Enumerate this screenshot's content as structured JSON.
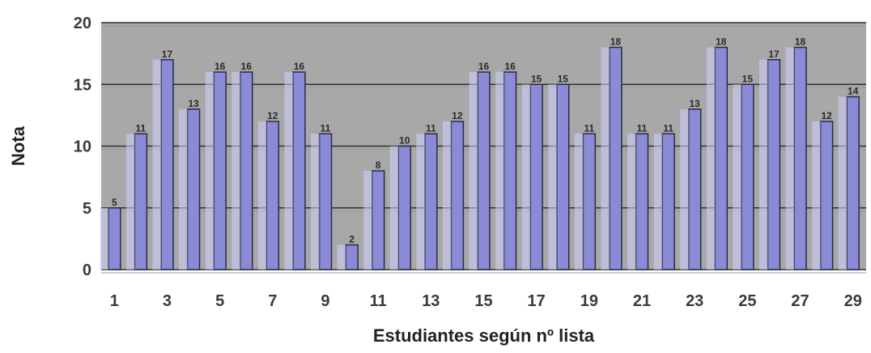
{
  "chart_data": {
    "type": "bar",
    "title": "",
    "xlabel": "Estudiantes según nº lista",
    "ylabel": "Nota",
    "ylim": [
      0,
      20
    ],
    "yticks": [
      0,
      5,
      10,
      15,
      20
    ],
    "categories": [
      "1",
      "2",
      "3",
      "4",
      "5",
      "6",
      "7",
      "8",
      "9",
      "10",
      "11",
      "12",
      "13",
      "14",
      "15",
      "16",
      "17",
      "18",
      "19",
      "20",
      "21",
      "22",
      "23",
      "24",
      "25",
      "26",
      "27",
      "28",
      "29"
    ],
    "shown_tick_labels": [
      "1",
      "3",
      "5",
      "7",
      "9",
      "11",
      "13",
      "15",
      "17",
      "19",
      "21",
      "23",
      "25",
      "27",
      "29"
    ],
    "values": [
      5,
      11,
      17,
      13,
      16,
      16,
      12,
      16,
      11,
      2,
      8,
      10,
      11,
      12,
      16,
      16,
      15,
      15,
      11,
      18,
      11,
      11,
      13,
      18,
      15,
      17,
      18,
      12,
      14
    ],
    "grid": true,
    "colors": {
      "bar": "#8a8ad6",
      "plot_background": "#a8a8a8",
      "page_background": "#ffffff"
    }
  }
}
